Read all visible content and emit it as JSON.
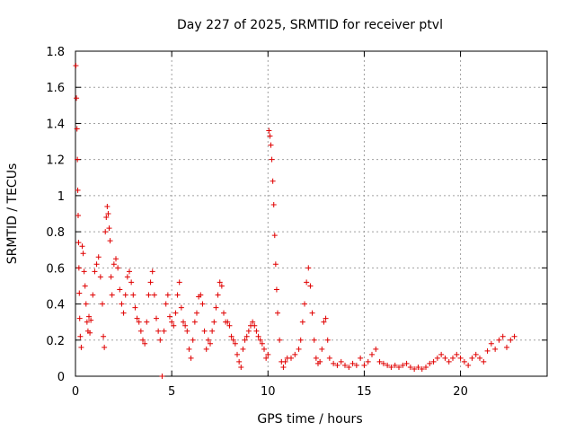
{
  "chart_data": {
    "type": "scatter",
    "title": "Day 227 of 2025, SRMTID for receiver ptvl",
    "xlabel": "GPS time / hours",
    "ylabel": "SRMTID / TECUs",
    "xlim": [
      0,
      24.5
    ],
    "ylim": [
      0,
      1.8
    ],
    "x_ticks": [
      0,
      5,
      10,
      15,
      20
    ],
    "x_tick_labels": [
      "0",
      "5",
      "10",
      "15",
      "20"
    ],
    "y_ticks": [
      0,
      0.2,
      0.4,
      0.6,
      0.8,
      1.0,
      1.2,
      1.4,
      1.6,
      1.8
    ],
    "y_tick_labels": [
      "0",
      "0.2",
      "0.4",
      "0.6",
      "0.8",
      "1",
      "1.2",
      "1.4",
      "1.6",
      "1.8"
    ],
    "grid": true,
    "marker": "+",
    "marker_color": "#e00000",
    "series": [
      {
        "name": "SRMTID",
        "points": [
          [
            0.02,
            1.72
          ],
          [
            0.05,
            1.54
          ],
          [
            0.08,
            1.37
          ],
          [
            0.1,
            1.2
          ],
          [
            0.12,
            1.03
          ],
          [
            0.14,
            0.89
          ],
          [
            0.16,
            0.74
          ],
          [
            0.18,
            0.6
          ],
          [
            0.2,
            0.46
          ],
          [
            0.22,
            0.32
          ],
          [
            0.25,
            0.22
          ],
          [
            0.3,
            0.16
          ],
          [
            0.35,
            0.72
          ],
          [
            0.4,
            0.68
          ],
          [
            0.45,
            0.58
          ],
          [
            0.5,
            0.5
          ],
          [
            0.55,
            0.4
          ],
          [
            0.6,
            0.3
          ],
          [
            0.65,
            0.25
          ],
          [
            0.7,
            0.33
          ],
          [
            0.75,
            0.24
          ],
          [
            0.8,
            0.31
          ],
          [
            0.9,
            0.45
          ],
          [
            1.0,
            0.58
          ],
          [
            1.1,
            0.62
          ],
          [
            1.2,
            0.66
          ],
          [
            1.3,
            0.55
          ],
          [
            1.4,
            0.4
          ],
          [
            1.45,
            0.22
          ],
          [
            1.5,
            0.16
          ],
          [
            1.55,
            0.8
          ],
          [
            1.6,
            0.88
          ],
          [
            1.65,
            0.94
          ],
          [
            1.7,
            0.9
          ],
          [
            1.75,
            0.82
          ],
          [
            1.8,
            0.75
          ],
          [
            1.85,
            0.55
          ],
          [
            1.9,
            0.45
          ],
          [
            2.0,
            0.62
          ],
          [
            2.1,
            0.65
          ],
          [
            2.2,
            0.6
          ],
          [
            2.3,
            0.48
          ],
          [
            2.4,
            0.4
          ],
          [
            2.5,
            0.35
          ],
          [
            2.6,
            0.45
          ],
          [
            2.7,
            0.55
          ],
          [
            2.8,
            0.58
          ],
          [
            2.9,
            0.52
          ],
          [
            3.0,
            0.45
          ],
          [
            3.1,
            0.38
          ],
          [
            3.2,
            0.32
          ],
          [
            3.3,
            0.3
          ],
          [
            3.4,
            0.25
          ],
          [
            3.5,
            0.2
          ],
          [
            3.6,
            0.18
          ],
          [
            3.7,
            0.3
          ],
          [
            3.8,
            0.45
          ],
          [
            3.9,
            0.52
          ],
          [
            4.0,
            0.58
          ],
          [
            4.1,
            0.45
          ],
          [
            4.2,
            0.32
          ],
          [
            4.3,
            0.25
          ],
          [
            4.4,
            0.2
          ],
          [
            4.5,
            0.0
          ],
          [
            4.6,
            0.25
          ],
          [
            4.7,
            0.4
          ],
          [
            4.8,
            0.45
          ],
          [
            4.9,
            0.33
          ],
          [
            5.0,
            0.3
          ],
          [
            5.1,
            0.28
          ],
          [
            5.2,
            0.35
          ],
          [
            5.3,
            0.45
          ],
          [
            5.4,
            0.52
          ],
          [
            5.5,
            0.38
          ],
          [
            5.6,
            0.3
          ],
          [
            5.7,
            0.28
          ],
          [
            5.8,
            0.25
          ],
          [
            5.9,
            0.15
          ],
          [
            6.0,
            0.1
          ],
          [
            6.1,
            0.2
          ],
          [
            6.2,
            0.3
          ],
          [
            6.3,
            0.35
          ],
          [
            6.4,
            0.44
          ],
          [
            6.5,
            0.45
          ],
          [
            6.6,
            0.4
          ],
          [
            6.7,
            0.25
          ],
          [
            6.8,
            0.15
          ],
          [
            6.9,
            0.2
          ],
          [
            7.0,
            0.18
          ],
          [
            7.1,
            0.25
          ],
          [
            7.2,
            0.3
          ],
          [
            7.3,
            0.38
          ],
          [
            7.4,
            0.45
          ],
          [
            7.5,
            0.52
          ],
          [
            7.6,
            0.5
          ],
          [
            7.7,
            0.35
          ],
          [
            7.8,
            0.3
          ],
          [
            7.9,
            0.3
          ],
          [
            8.0,
            0.28
          ],
          [
            8.1,
            0.22
          ],
          [
            8.2,
            0.2
          ],
          [
            8.3,
            0.18
          ],
          [
            8.4,
            0.12
          ],
          [
            8.5,
            0.08
          ],
          [
            8.6,
            0.05
          ],
          [
            8.7,
            0.15
          ],
          [
            8.8,
            0.2
          ],
          [
            8.9,
            0.22
          ],
          [
            9.0,
            0.25
          ],
          [
            9.1,
            0.28
          ],
          [
            9.2,
            0.3
          ],
          [
            9.3,
            0.28
          ],
          [
            9.4,
            0.25
          ],
          [
            9.5,
            0.22
          ],
          [
            9.6,
            0.2
          ],
          [
            9.7,
            0.18
          ],
          [
            9.8,
            0.15
          ],
          [
            9.9,
            0.1
          ],
          [
            10.0,
            0.12
          ],
          [
            10.05,
            1.36
          ],
          [
            10.1,
            1.33
          ],
          [
            10.15,
            1.28
          ],
          [
            10.2,
            1.2
          ],
          [
            10.25,
            1.08
          ],
          [
            10.3,
            0.95
          ],
          [
            10.35,
            0.78
          ],
          [
            10.4,
            0.62
          ],
          [
            10.45,
            0.48
          ],
          [
            10.5,
            0.35
          ],
          [
            10.6,
            0.2
          ],
          [
            10.7,
            0.08
          ],
          [
            10.8,
            0.05
          ],
          [
            10.9,
            0.08
          ],
          [
            11.0,
            0.1
          ],
          [
            11.2,
            0.1
          ],
          [
            11.4,
            0.12
          ],
          [
            11.6,
            0.15
          ],
          [
            11.7,
            0.2
          ],
          [
            11.8,
            0.3
          ],
          [
            11.9,
            0.4
          ],
          [
            12.0,
            0.52
          ],
          [
            12.1,
            0.6
          ],
          [
            12.2,
            0.5
          ],
          [
            12.3,
            0.35
          ],
          [
            12.4,
            0.2
          ],
          [
            12.5,
            0.1
          ],
          [
            12.6,
            0.07
          ],
          [
            12.7,
            0.08
          ],
          [
            12.8,
            0.15
          ],
          [
            12.9,
            0.3
          ],
          [
            13.0,
            0.32
          ],
          [
            13.1,
            0.2
          ],
          [
            13.2,
            0.1
          ],
          [
            13.4,
            0.07
          ],
          [
            13.6,
            0.06
          ],
          [
            13.8,
            0.08
          ],
          [
            14.0,
            0.06
          ],
          [
            14.2,
            0.05
          ],
          [
            14.4,
            0.07
          ],
          [
            14.6,
            0.06
          ],
          [
            14.8,
            0.1
          ],
          [
            15.0,
            0.06
          ],
          [
            15.2,
            0.08
          ],
          [
            15.4,
            0.12
          ],
          [
            15.6,
            0.15
          ],
          [
            15.8,
            0.08
          ],
          [
            16.0,
            0.07
          ],
          [
            16.2,
            0.06
          ],
          [
            16.4,
            0.05
          ],
          [
            16.6,
            0.06
          ],
          [
            16.8,
            0.05
          ],
          [
            17.0,
            0.06
          ],
          [
            17.2,
            0.07
          ],
          [
            17.4,
            0.05
          ],
          [
            17.6,
            0.04
          ],
          [
            17.8,
            0.05
          ],
          [
            18.0,
            0.04
          ],
          [
            18.2,
            0.05
          ],
          [
            18.4,
            0.07
          ],
          [
            18.6,
            0.08
          ],
          [
            18.8,
            0.1
          ],
          [
            19.0,
            0.12
          ],
          [
            19.2,
            0.1
          ],
          [
            19.4,
            0.08
          ],
          [
            19.6,
            0.1
          ],
          [
            19.8,
            0.12
          ],
          [
            20.0,
            0.1
          ],
          [
            20.2,
            0.08
          ],
          [
            20.4,
            0.06
          ],
          [
            20.6,
            0.1
          ],
          [
            20.8,
            0.12
          ],
          [
            21.0,
            0.1
          ],
          [
            21.2,
            0.08
          ],
          [
            21.4,
            0.14
          ],
          [
            21.6,
            0.18
          ],
          [
            21.8,
            0.15
          ],
          [
            22.0,
            0.2
          ],
          [
            22.2,
            0.22
          ],
          [
            22.4,
            0.16
          ],
          [
            22.6,
            0.2
          ],
          [
            22.8,
            0.22
          ]
        ]
      }
    ]
  }
}
